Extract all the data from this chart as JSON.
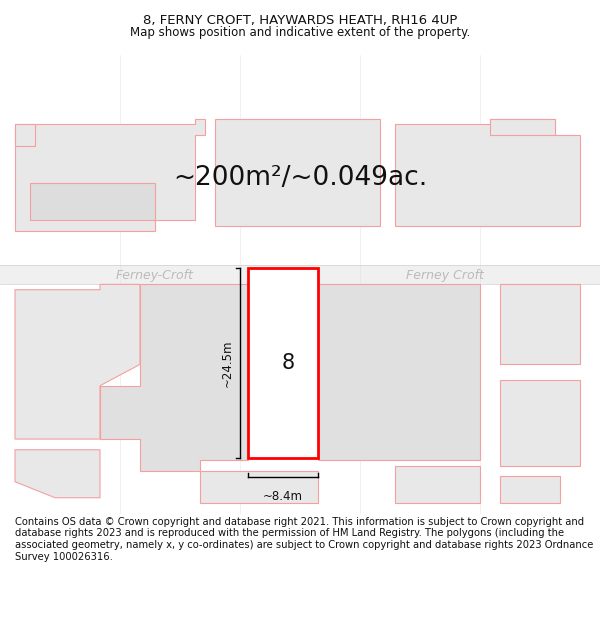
{
  "title_line1": "8, FERNY CROFT, HAYWARDS HEATH, RH16 4UP",
  "title_line2": "Map shows position and indicative extent of the property.",
  "area_text": "~200m²/~0.049ac.",
  "street_label_left": "Ferney-Croft",
  "street_label_right": "Ferney Croft",
  "property_number": "8",
  "dim_height": "~24.5m",
  "dim_width": "~8.4m",
  "footer_text": "Contains OS data © Crown copyright and database right 2021. This information is subject to Crown copyright and database rights 2023 and is reproduced with the permission of HM Land Registry. The polygons (including the associated geometry, namely x, y co-ordinates) are subject to Crown copyright and database rights 2023 Ordnance Survey 100026316.",
  "bg_color": "#ffffff",
  "map_bg": "#f8f8f8",
  "plot_fill": "#ffffff",
  "plot_stroke": "#ff0000",
  "neighbor_fill": "#e8e8e8",
  "neighbor_stroke": "#f4a0a0",
  "road_color": "#f0f0f0",
  "title_fontsize": 9.5,
  "subtitle_fontsize": 8.5,
  "area_fontsize": 19,
  "footer_fontsize": 7.2,
  "street_fontsize": 9
}
